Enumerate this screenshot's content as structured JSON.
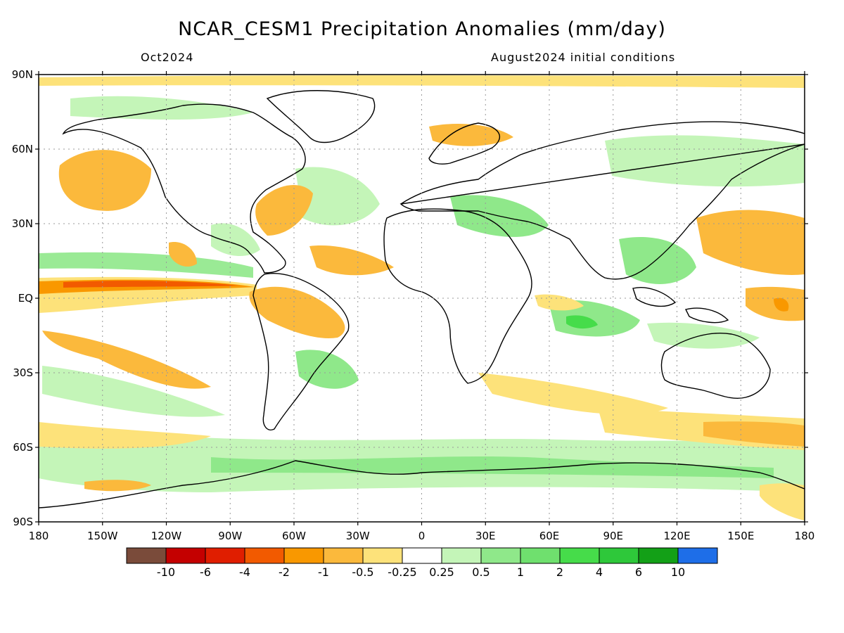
{
  "title": "NCAR_CESM1 Precipitation Anomalies (mm/day)",
  "month": "Oct2024",
  "init": "August2024 initial conditions",
  "lat_labels": [
    "90N",
    "60N",
    "30N",
    "EQ",
    "30S",
    "60S",
    "90S"
  ],
  "lat_values": [
    90,
    60,
    30,
    0,
    -30,
    -60,
    -90
  ],
  "lon_labels": [
    "180",
    "150W",
    "120W",
    "90W",
    "60W",
    "30W",
    "0",
    "30E",
    "60E",
    "90E",
    "120E",
    "150E",
    "180"
  ],
  "lon_values": [
    -180,
    -150,
    -120,
    -90,
    -60,
    -30,
    0,
    30,
    60,
    90,
    120,
    150,
    180
  ],
  "colorbar": {
    "colors": [
      "#7a4b3a",
      "#c40000",
      "#e01e00",
      "#f25a00",
      "#f99800",
      "#fbb93c",
      "#fde27a",
      "#ffffff",
      "#c4f5b8",
      "#8fe88a",
      "#6fe06e",
      "#46dc4a",
      "#2ec83a",
      "#13a017",
      "#1e6ee8"
    ],
    "labels": [
      "-10",
      "-6",
      "-4",
      "-2",
      "-1",
      "-0.5",
      "-0.25",
      "0.25",
      "0.5",
      "1",
      "2",
      "4",
      "6",
      "10"
    ]
  },
  "icons": {
    "map": "world-map"
  }
}
